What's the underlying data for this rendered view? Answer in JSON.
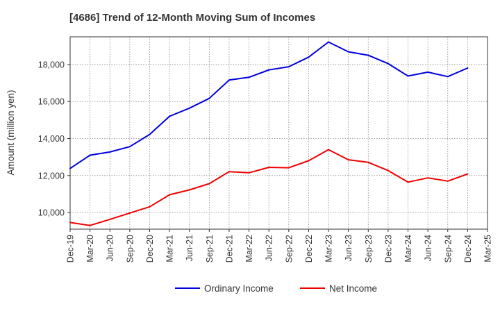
{
  "chart_data": {
    "type": "line",
    "title": "[4686]  Trend of 12-Month Moving Sum of Incomes",
    "xlabel": "",
    "ylabel": "Amount (million yen)",
    "x_ticks": [
      "Dec-19",
      "Mar-20",
      "Jun-20",
      "Sep-20",
      "Dec-20",
      "Mar-21",
      "Jun-21",
      "Sep-21",
      "Dec-21",
      "Mar-22",
      "Jun-22",
      "Sep-22",
      "Dec-22",
      "Mar-23",
      "Jun-23",
      "Sep-23",
      "Dec-23",
      "Mar-24",
      "Jun-24",
      "Sep-24",
      "Dec-24",
      "Mar-25"
    ],
    "y_ticks": [
      10000,
      12000,
      14000,
      16000,
      18000
    ],
    "y_tick_labels": [
      "10,000",
      "12,000",
      "14,000",
      "16,000",
      "18,000"
    ],
    "ylim": [
      9100,
      19500
    ],
    "grid": true,
    "legend_position": "bottom",
    "categories": [
      "Dec-19",
      "Mar-20",
      "Jun-20",
      "Sep-20",
      "Dec-20",
      "Mar-21",
      "Jun-21",
      "Sep-21",
      "Dec-21",
      "Mar-22",
      "Jun-22",
      "Sep-22",
      "Dec-22",
      "Mar-23",
      "Jun-23",
      "Sep-23",
      "Dec-23",
      "Mar-24",
      "Jun-24",
      "Sep-24",
      "Dec-24"
    ],
    "series": [
      {
        "name": "Ordinary Income",
        "color": "#0000dd",
        "values": [
          12380,
          13100,
          13270,
          13560,
          14220,
          15200,
          15640,
          16170,
          17160,
          17310,
          17710,
          17880,
          18400,
          19220,
          18690,
          18500,
          18050,
          17380,
          17590,
          17350,
          17810
        ]
      },
      {
        "name": "Net Income",
        "color": "#ee0000",
        "values": [
          9460,
          9300,
          9630,
          9970,
          10310,
          10960,
          11220,
          11560,
          12210,
          12150,
          12440,
          12420,
          12800,
          13400,
          12850,
          12710,
          12270,
          11640,
          11870,
          11700,
          12080
        ]
      }
    ]
  }
}
